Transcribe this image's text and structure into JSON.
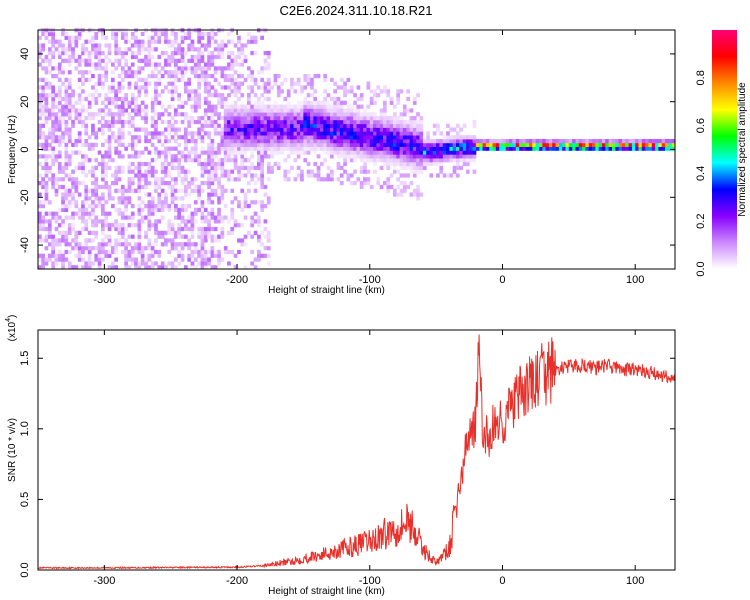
{
  "title": "C2E6.2024.311.10.18.R21",
  "chart_data": [
    {
      "type": "heatmap",
      "xlabel": "Height of straight line (km)",
      "ylabel": "Frequency (Hz)",
      "xlim": [
        -350,
        130
      ],
      "ylim": [
        -50,
        50
      ],
      "x_ticks": [
        -300,
        -200,
        -100,
        0,
        100
      ],
      "y_ticks": [
        -40,
        -20,
        0,
        20,
        40
      ],
      "colorbar": {
        "label": "Normalized spectral amplitude",
        "range": [
          0,
          1
        ],
        "ticks": [
          0.0,
          0.2,
          0.4,
          0.6,
          0.8
        ],
        "colors": [
          "#ffffff",
          "#cc88ff",
          "#8800ff",
          "#0000ff",
          "#00ffff",
          "#00ff00",
          "#ffff00",
          "#ff8800",
          "#ff0000",
          "#ff0077"
        ]
      },
      "regions": [
        {
          "x": [
            -350,
            -175
          ],
          "freq": [
            -50,
            50
          ],
          "amplitude": "low, scattered"
        },
        {
          "x": [
            -210,
            -150
          ],
          "freq": [
            -3,
            18
          ],
          "amplitude": "0.2-0.3"
        },
        {
          "x": [
            -150,
            -60
          ],
          "freq": [
            -10,
            12
          ],
          "amplitude": "0.2-0.5"
        },
        {
          "x": [
            -60,
            -20
          ],
          "freq": [
            -5,
            5
          ],
          "amplitude": "0.3-0.6"
        },
        {
          "x": [
            -20,
            130
          ],
          "freq": [
            -2,
            3
          ],
          "amplitude": "0.6-1.0"
        }
      ]
    },
    {
      "type": "line",
      "xlabel": "Height of straight line (km)",
      "ylabel": "SNR (10 * v/v)",
      "y_multiplier": "(x10",
      "y_multiplier_exp": "4",
      "xlim": [
        -350,
        130
      ],
      "ylim": [
        0,
        1.7
      ],
      "x_ticks": [
        -300,
        -200,
        -100,
        0,
        100
      ],
      "y_ticks": [
        "0.0",
        "0.5",
        "1.0",
        "1.5"
      ],
      "color": "#e8302a",
      "series": [
        {
          "x": [
            -350,
            -320,
            -280,
            -240,
            -200,
            -180,
            -160,
            -140,
            -120,
            -100,
            -80,
            -70,
            -60,
            -50,
            -40,
            -35,
            -30,
            -25,
            -20,
            -18,
            -15,
            -10,
            -5,
            0,
            10,
            20,
            30,
            40,
            50,
            60,
            70,
            80,
            90,
            100,
            110,
            120,
            130
          ],
          "y": [
            0.015,
            0.015,
            0.016,
            0.018,
            0.02,
            0.03,
            0.06,
            0.1,
            0.15,
            0.2,
            0.3,
            0.35,
            0.15,
            0.05,
            0.15,
            0.45,
            0.7,
            1.0,
            1.05,
            1.6,
            0.95,
            0.95,
            1.05,
            1.05,
            1.2,
            1.3,
            1.38,
            1.42,
            1.44,
            1.45,
            1.43,
            1.45,
            1.42,
            1.42,
            1.4,
            1.38,
            1.35
          ]
        }
      ]
    }
  ]
}
